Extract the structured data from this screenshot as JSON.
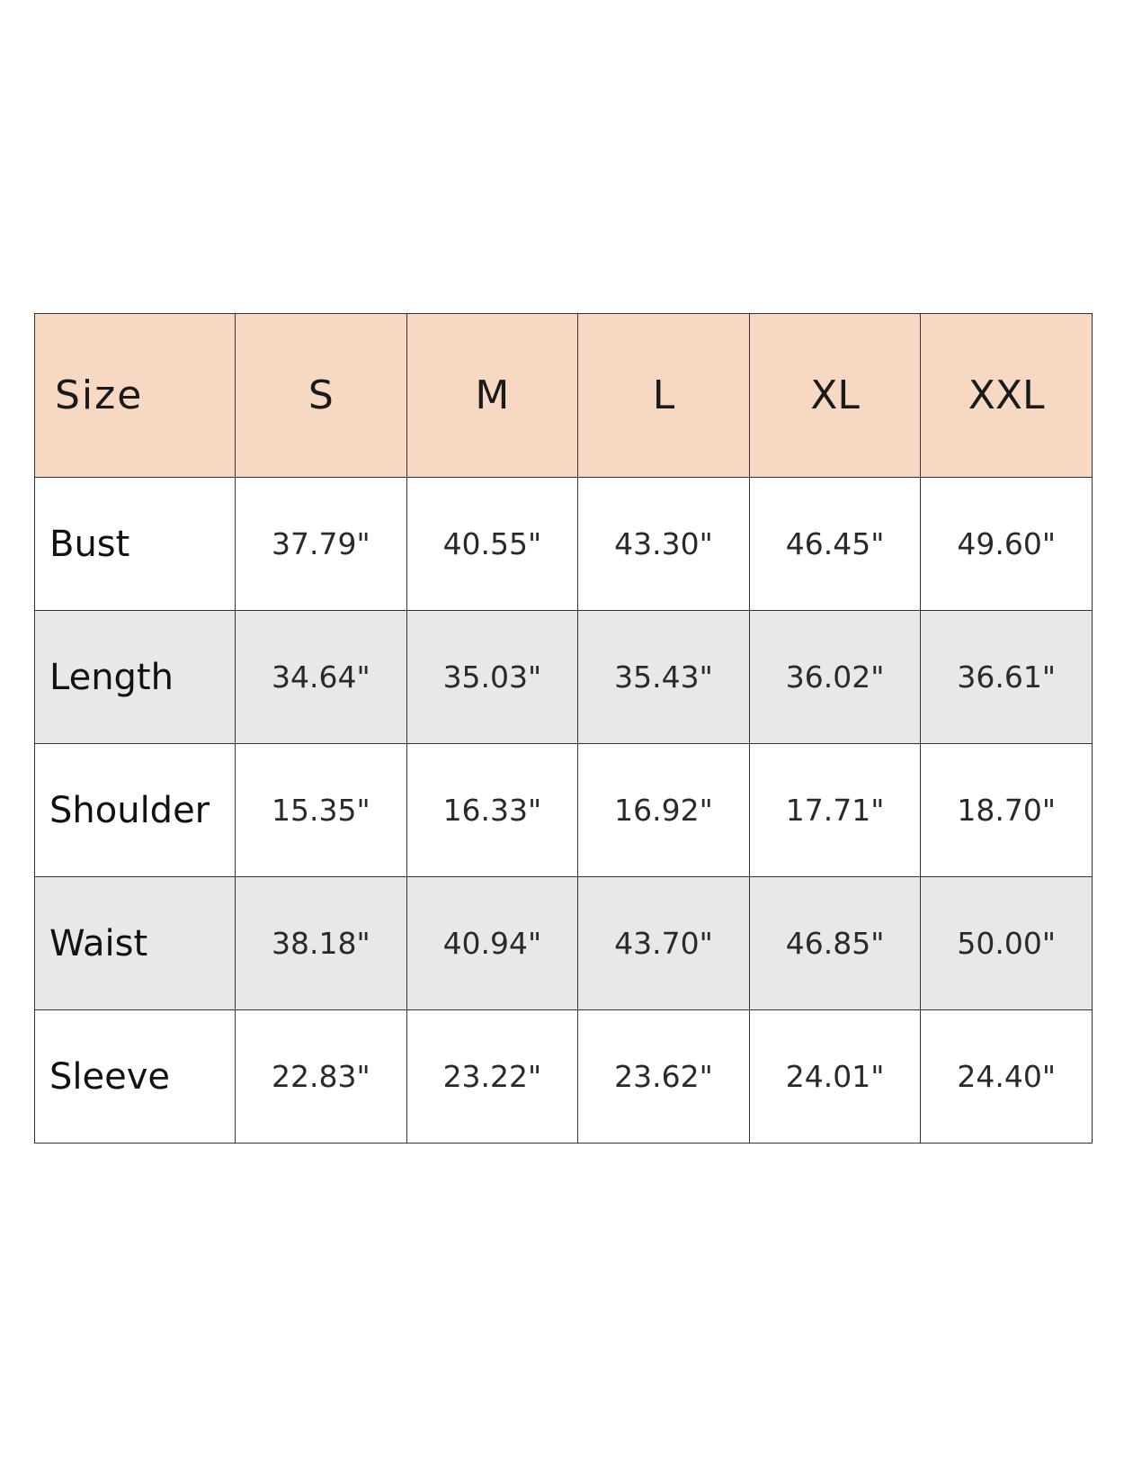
{
  "table": {
    "header": [
      "Size",
      "S",
      "M",
      "L",
      "XL",
      "XXL"
    ],
    "rows": [
      {
        "label": "Bust",
        "values": [
          "37.79\"",
          "40.55\"",
          "43.30\"",
          "46.45\"",
          "49.60\""
        ]
      },
      {
        "label": "Length",
        "values": [
          "34.64\"",
          "35.03\"",
          "35.43\"",
          "36.02\"",
          "36.61\""
        ]
      },
      {
        "label": "Shoulder",
        "values": [
          "15.35\"",
          "16.33\"",
          "16.92\"",
          "17.71\"",
          "18.70\""
        ]
      },
      {
        "label": "Waist",
        "values": [
          "38.18\"",
          "40.94\"",
          "43.70\"",
          "46.85\"",
          "50.00\""
        ]
      },
      {
        "label": "Sleeve",
        "values": [
          "22.83\"",
          "23.22\"",
          "23.62\"",
          "24.01\"",
          "24.40\""
        ]
      }
    ]
  },
  "colors": {
    "header_bg": "#f7d8c2",
    "alt_row_bg": "#e8e8e8"
  }
}
